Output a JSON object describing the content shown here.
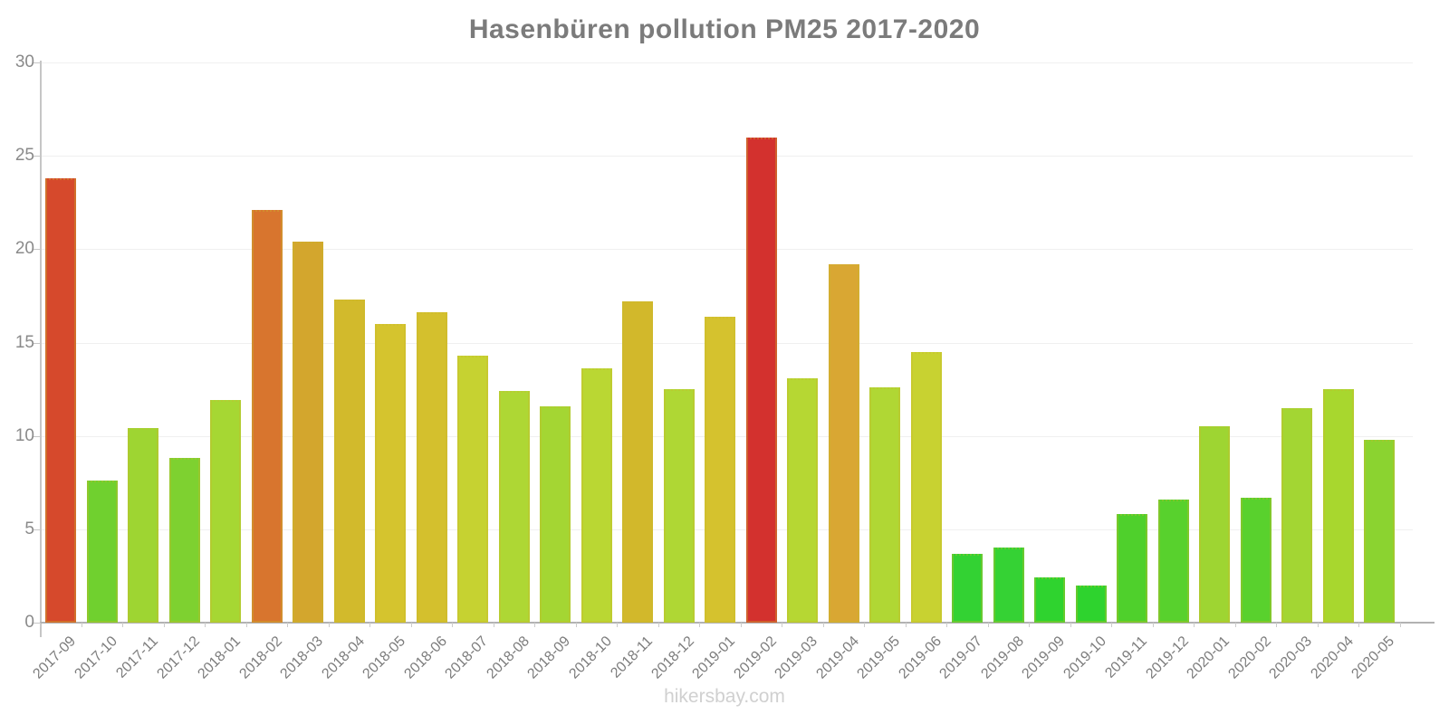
{
  "watermark": "hikersbay.com",
  "chart_data": {
    "type": "bar",
    "title": "Hasenbüren pollution PM25 2017-2020",
    "xlabel": "",
    "ylabel": "",
    "ylim": [
      0,
      30
    ],
    "y_ticks": [
      0,
      5,
      10,
      15,
      20,
      25,
      30
    ],
    "grid": true,
    "legend_position": "none",
    "categories": [
      "2017-09",
      "2017-10",
      "2017-11",
      "2017-12",
      "2018-01",
      "2018-02",
      "2018-03",
      "2018-04",
      "2018-05",
      "2018-06",
      "2018-07",
      "2018-08",
      "2018-09",
      "2018-10",
      "2018-11",
      "2018-12",
      "2019-01",
      "2019-02",
      "2019-03",
      "2019-04",
      "2019-05",
      "2019-06",
      "2019-07",
      "2019-08",
      "2019-09",
      "2019-10",
      "2019-11",
      "2019-12",
      "2020-01",
      "2020-02",
      "2020-03",
      "2020-04",
      "2020-05"
    ],
    "values": [
      23.8,
      7.6,
      10.4,
      8.8,
      11.9,
      22.1,
      20.4,
      17.3,
      16.0,
      16.6,
      14.3,
      12.4,
      11.6,
      13.6,
      17.2,
      12.5,
      16.4,
      26.0,
      13.1,
      19.2,
      12.6,
      14.5,
      3.7,
      4.0,
      2.4,
      2.0,
      5.8,
      6.6,
      10.5,
      6.7,
      11.5,
      12.5,
      9.8
    ],
    "bar_colors": [
      "#d6492c",
      "#70d02f",
      "#9ed532",
      "#7ed130",
      "#a6d733",
      "#d8752e",
      "#d3a62d",
      "#d2ba2c",
      "#d5c42e",
      "#d4c02d",
      "#c6d231",
      "#aed734",
      "#a4d633",
      "#bad733",
      "#d2b82b",
      "#afd734",
      "#d5c22e",
      "#d3312e",
      "#b6d733",
      "#d9a733",
      "#b0d734",
      "#c8d231",
      "#33d233",
      "#35d234",
      "#2fd32f",
      "#2ed32e",
      "#4fd02c",
      "#58d12d",
      "#9ed532",
      "#59d12d",
      "#a3d633",
      "#a8d72e",
      "#8bd330"
    ]
  }
}
